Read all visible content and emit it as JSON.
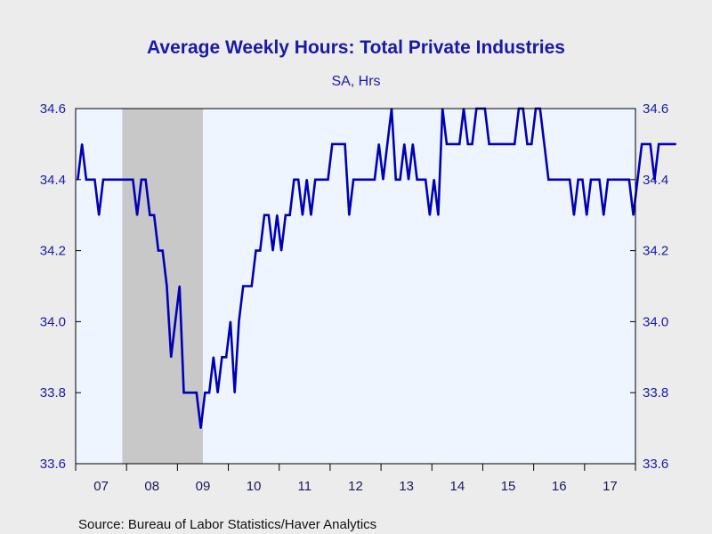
{
  "chart_data": {
    "type": "line",
    "title": "Average Weekly Hours: Total Private Industries",
    "subtitle": "SA, Hrs",
    "source": "Source:  Bureau of Labor Statistics/Haver Analytics",
    "ylim": [
      33.6,
      34.6
    ],
    "y_ticks": [
      "34.6",
      "34.4",
      "34.2",
      "34.0",
      "33.8",
      "33.6"
    ],
    "y_tick_values": [
      34.6,
      34.4,
      34.2,
      34.0,
      33.8,
      33.6
    ],
    "x_tick_labels": [
      "07",
      "08",
      "09",
      "10",
      "11",
      "12",
      "13",
      "14",
      "15",
      "16",
      "17"
    ],
    "x_start": "2007-01",
    "x_end": "2017-12",
    "recession": {
      "start": "2007-12",
      "end": "2009-06"
    },
    "grid": false,
    "colors": {
      "line": "#0000b4",
      "recession": "#c8c8c8",
      "plot_bg": "#eef5ff",
      "text": "#1a1aa6"
    },
    "series": [
      {
        "values": [
          34.4,
          34.5,
          34.4,
          34.4,
          34.4,
          34.3,
          34.4,
          34.4,
          34.4,
          34.4,
          34.4,
          34.4,
          34.4,
          34.4,
          34.3,
          34.4,
          34.4,
          34.3,
          34.3,
          34.2,
          34.2,
          34.1,
          33.9,
          34.0,
          34.1,
          33.8,
          33.8,
          33.8,
          33.8,
          33.7,
          33.8,
          33.8,
          33.9,
          33.8,
          33.9,
          33.9,
          34.0,
          33.8,
          34.0,
          34.1,
          34.1,
          34.1,
          34.2,
          34.2,
          34.3,
          34.3,
          34.2,
          34.3,
          34.2,
          34.3,
          34.3,
          34.4,
          34.4,
          34.3,
          34.4,
          34.3,
          34.4,
          34.4,
          34.4,
          34.4,
          34.5,
          34.5,
          34.5,
          34.5,
          34.3,
          34.4,
          34.4,
          34.4,
          34.4,
          34.4,
          34.4,
          34.5,
          34.4,
          34.5,
          34.6,
          34.4,
          34.4,
          34.5,
          34.4,
          34.5,
          34.4,
          34.4,
          34.4,
          34.3,
          34.4,
          34.3,
          34.6,
          34.5,
          34.5,
          34.5,
          34.5,
          34.6,
          34.5,
          34.5,
          34.6,
          34.6,
          34.6,
          34.5,
          34.5,
          34.5,
          34.5,
          34.5,
          34.5,
          34.5,
          34.6,
          34.6,
          34.5,
          34.5,
          34.6,
          34.6,
          34.5,
          34.4,
          34.4,
          34.4,
          34.4,
          34.4,
          34.4,
          34.3,
          34.4,
          34.4,
          34.3,
          34.4,
          34.4,
          34.4,
          34.3,
          34.4,
          34.4,
          34.4,
          34.4,
          34.4,
          34.4,
          34.3,
          34.4,
          34.5,
          34.5,
          34.5,
          34.4,
          34.5,
          34.5,
          34.5,
          34.5,
          34.5
        ]
      }
    ]
  }
}
